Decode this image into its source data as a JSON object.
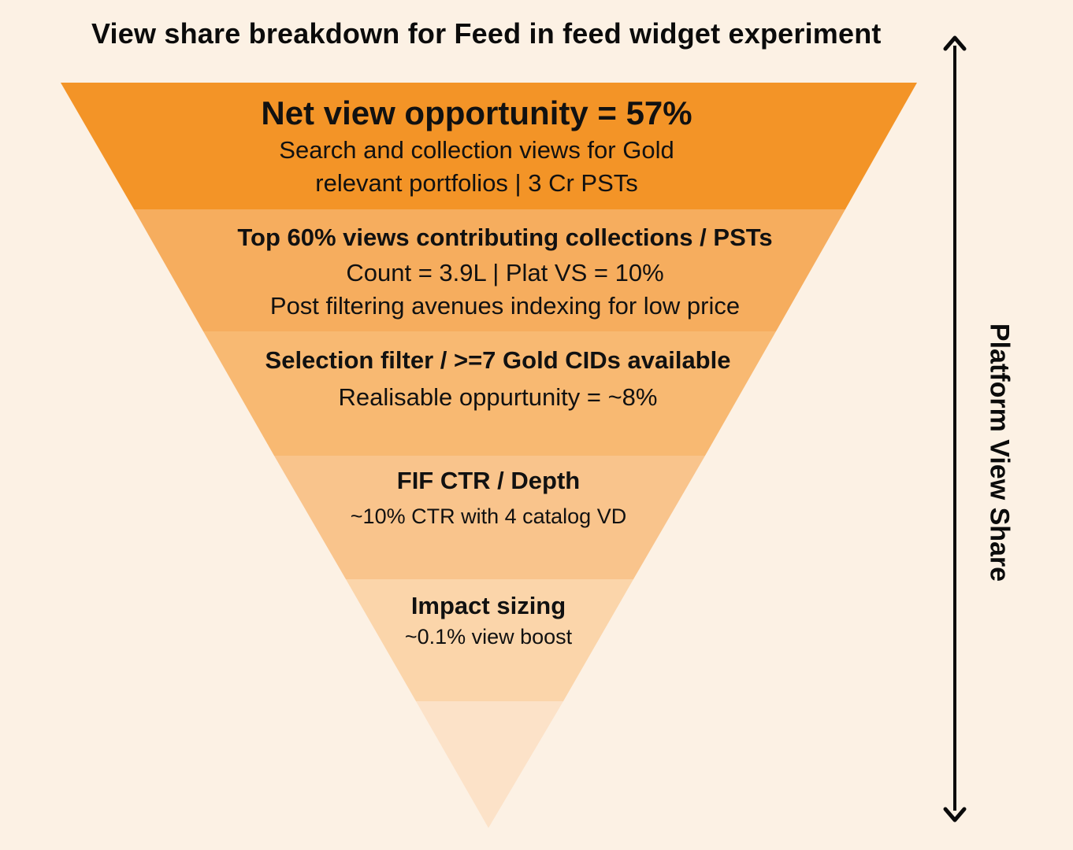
{
  "title": "View share breakdown for Feed in feed widget experiment",
  "axis_label": "Platform View Share",
  "colors": {
    "background": "#fcf1e4",
    "stage1": "#f39427",
    "stage2": "#f6ad5e",
    "stage3": "#f8b972",
    "stage4": "#f9c48c",
    "stage5": "#fbd5aa",
    "stage6": "#fce2c8"
  },
  "stages": [
    {
      "heading": "Net view opportunity = 57%",
      "line1": "Search and collection views for Gold",
      "line2": "relevant portfolios | 3 Cr PSTs"
    },
    {
      "heading": "Top 60% views contributing collections / PSTs",
      "line1": "Count = 3.9L | Plat VS = 10%",
      "line2": "Post filtering avenues indexing for low price"
    },
    {
      "heading": "Selection filter / >=7 Gold CIDs available",
      "line1": "Realisable oppurtunity = ~8%"
    },
    {
      "heading": "FIF CTR / Depth",
      "line1": "~10% CTR with 4 catalog VD"
    },
    {
      "heading": "Impact sizing",
      "line1": "~0.1% view boost"
    }
  ]
}
